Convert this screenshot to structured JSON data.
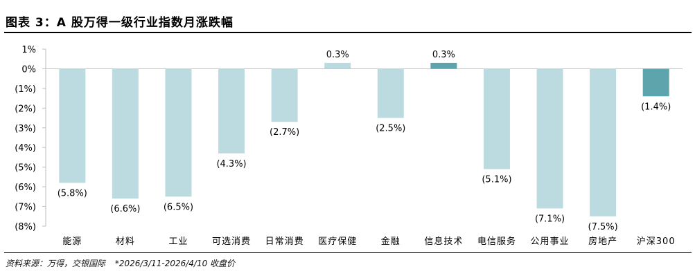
{
  "header": {
    "title": "图表 3：A 股万得一级行业指数月涨跌幅"
  },
  "footer": {
    "source": "资料来源：万得，交银国际",
    "note": "*2026/3/11-2026/4/10 收盘价"
  },
  "chart_data": {
    "type": "bar",
    "title": "图表 3：A 股万得一级行业指数月涨跌幅",
    "xlabel": "",
    "ylabel": "",
    "ylim": [
      -8,
      1
    ],
    "yticks": [
      1,
      0,
      -1,
      -2,
      -3,
      -4,
      -5,
      -6,
      -7,
      -8
    ],
    "ytick_labels": [
      "1%",
      "0%",
      "(1%)",
      "(2%)",
      "(3%)",
      "(4%)",
      "(5%)",
      "(6%)",
      "(7%)",
      "(8%)"
    ],
    "categories": [
      "能源",
      "材料",
      "工业",
      "可选消费",
      "日常消费",
      "医疗保健",
      "金融",
      "信息技术",
      "电信服务",
      "公用事业",
      "房地产",
      "沪深300"
    ],
    "values": [
      -5.8,
      -6.6,
      -6.5,
      -4.3,
      -2.7,
      0.3,
      -2.5,
      0.3,
      -5.1,
      -7.1,
      -7.5,
      -1.4
    ],
    "data_labels": [
      "(5.8%)",
      "(6.6%)",
      "(6.5%)",
      "(4.3%)",
      "(2.7%)",
      "0.3%",
      "(2.5%)",
      "0.3%",
      "(5.1%)",
      "(7.1%)",
      "(7.5%)",
      "(1.4%)"
    ],
    "bar_colors": [
      "#bcdbe0",
      "#bcdbe0",
      "#bcdbe0",
      "#bcdbe0",
      "#bcdbe0",
      "#bcdbe0",
      "#bcdbe0",
      "#5ea4ac",
      "#bcdbe0",
      "#bcdbe0",
      "#bcdbe0",
      "#5ea4ac"
    ],
    "grid": false,
    "legend": "none"
  }
}
